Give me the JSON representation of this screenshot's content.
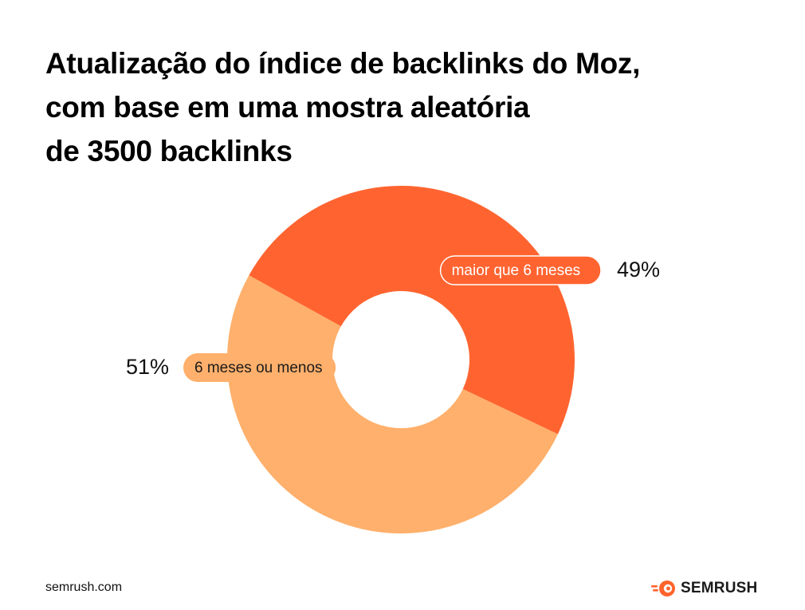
{
  "title_lines": [
    "Atualização do índice de backlinks do Moz,",
    "com base em uma mostra aleatória",
    "de 3500 backlinks"
  ],
  "chart_data": {
    "type": "pie",
    "donut": true,
    "title": "Atualização do índice de backlinks do Moz, com base em uma mostra aleatória de 3500 backlinks",
    "slices": [
      {
        "label": "maior que 6 meses",
        "value": 49,
        "value_label": "49%",
        "color": "#ff6430"
      },
      {
        "label": "6 meses ou menos",
        "value": 51,
        "value_label": "51%",
        "color": "#ffb06c"
      }
    ]
  },
  "footer": {
    "url": "semrush.com",
    "brand": "SEMRUSH"
  },
  "colors": {
    "brand": "#ff642d",
    "text": "#000000"
  },
  "icons": {
    "brand": "semrush-fireball-icon"
  }
}
